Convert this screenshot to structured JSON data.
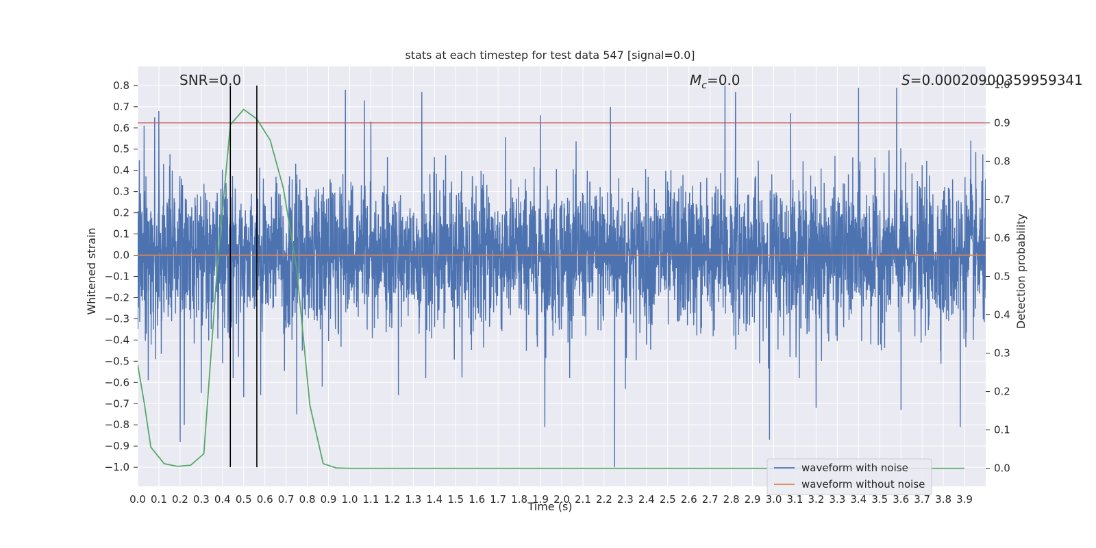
{
  "chart_data": {
    "type": "line",
    "title": "stats at each timestep for test data 547 [signal=0.0]",
    "xlabel": "Time (s)",
    "ylabel": "Whitened strain",
    "y2label": "Detection probability",
    "xlim": [
      0.0,
      4.0
    ],
    "ylim": [
      -1.09,
      0.89
    ],
    "y2lim": [
      -0.047,
      1.047
    ],
    "xticks": [
      "0.0",
      "0.1",
      "0.2",
      "0.3",
      "0.4",
      "0.5",
      "0.6",
      "0.7",
      "0.8",
      "0.9",
      "1.0",
      "1.1",
      "1.2",
      "1.3",
      "1.4",
      "1.5",
      "1.6",
      "1.7",
      "1.8",
      "1.9",
      "2.0",
      "2.1",
      "2.2",
      "2.3",
      "2.4",
      "2.5",
      "2.6",
      "2.7",
      "2.8",
      "2.9",
      "3.0",
      "3.1",
      "3.2",
      "3.3",
      "3.4",
      "3.5",
      "3.6",
      "3.7",
      "3.8",
      "3.9"
    ],
    "yticks": [
      "0.8",
      "0.7",
      "0.6",
      "0.5",
      "0.4",
      "0.3",
      "0.2",
      "0.1",
      "0.0",
      "−0.1",
      "−0.2",
      "−0.3",
      "−0.4",
      "−0.5",
      "−0.6",
      "−0.7",
      "−0.8",
      "−0.9",
      "−1.0"
    ],
    "y2ticks": [
      "1.0",
      "0.9",
      "0.8",
      "0.7",
      "0.6",
      "0.5",
      "0.4",
      "0.3",
      "0.2",
      "0.1",
      "0.0"
    ],
    "grid": true,
    "legend_position": "lower-right",
    "colors": {
      "background": "#eaeaf2",
      "grid": "#ffffff",
      "noisy": "#4c72b0",
      "clean": "#dd8452",
      "probability": "#55a868",
      "threshold": "#c44e52",
      "markers": "#000000"
    },
    "annotations": {
      "snr": "SNR=0.0",
      "mc_symbol": "M",
      "mc_sub": "c",
      "mc_value": "=0.0",
      "s_symbol": "S",
      "s_value": "=0.00020900359959341"
    },
    "series": [
      {
        "name": "waveform with noise",
        "axis": "left",
        "style": "noise",
        "x_range": [
          0.0,
          4.0
        ],
        "extremes": [
          {
            "x": 0.03,
            "y": 0.61
          },
          {
            "x": 0.05,
            "y": -0.59
          },
          {
            "x": 0.08,
            "y": 0.65
          },
          {
            "x": 0.1,
            "y": 0.68
          },
          {
            "x": 0.15,
            "y": 0.42
          },
          {
            "x": 0.2,
            "y": -0.88
          },
          {
            "x": 0.22,
            "y": -0.8
          },
          {
            "x": 0.3,
            "y": -0.65
          },
          {
            "x": 0.45,
            "y": -0.58
          },
          {
            "x": 0.5,
            "y": -0.67
          },
          {
            "x": 0.58,
            "y": -0.66
          },
          {
            "x": 0.75,
            "y": -0.75
          },
          {
            "x": 0.87,
            "y": -0.62
          },
          {
            "x": 0.98,
            "y": 0.78
          },
          {
            "x": 1.07,
            "y": 0.73
          },
          {
            "x": 1.1,
            "y": 0.63
          },
          {
            "x": 1.23,
            "y": -0.66
          },
          {
            "x": 1.34,
            "y": 0.77
          },
          {
            "x": 1.9,
            "y": 0.66
          },
          {
            "x": 1.92,
            "y": -0.81
          },
          {
            "x": 2.23,
            "y": 0.7
          },
          {
            "x": 2.25,
            "y": -1.0
          },
          {
            "x": 2.3,
            "y": -0.63
          },
          {
            "x": 2.77,
            "y": 0.8
          },
          {
            "x": 2.82,
            "y": 0.77
          },
          {
            "x": 2.98,
            "y": -0.87
          },
          {
            "x": 3.08,
            "y": 0.67
          },
          {
            "x": 3.2,
            "y": -0.72
          },
          {
            "x": 3.4,
            "y": 0.79
          },
          {
            "x": 3.58,
            "y": 0.79
          },
          {
            "x": 3.6,
            "y": -0.73
          },
          {
            "x": 3.88,
            "y": -0.81
          },
          {
            "x": 3.93,
            "y": 0.54
          }
        ]
      },
      {
        "name": "waveform without noise",
        "axis": "left",
        "x": [
          0.0,
          4.0
        ],
        "y": [
          0.0,
          0.0
        ]
      },
      {
        "name": "",
        "axis": "right",
        "x": [
          0.0,
          0.031,
          0.062,
          0.125,
          0.187,
          0.25,
          0.312,
          0.375,
          0.437,
          0.5,
          0.562,
          0.625,
          0.687,
          0.75,
          0.812,
          0.875,
          0.937,
          1.0,
          3.9
        ],
        "y": [
          0.27,
          0.17,
          0.055,
          0.012,
          0.005,
          0.008,
          0.038,
          0.52,
          0.895,
          0.935,
          0.91,
          0.855,
          0.73,
          0.52,
          0.165,
          0.012,
          0.001,
          0.0,
          0.0
        ]
      }
    ],
    "threshold": {
      "axis": "right",
      "y": 0.9
    },
    "vertical_markers": [
      {
        "x": 0.437,
        "y_range": [
          -1.0,
          0.8
        ]
      },
      {
        "x": 0.562,
        "y_range": [
          -1.0,
          0.8
        ]
      }
    ]
  }
}
